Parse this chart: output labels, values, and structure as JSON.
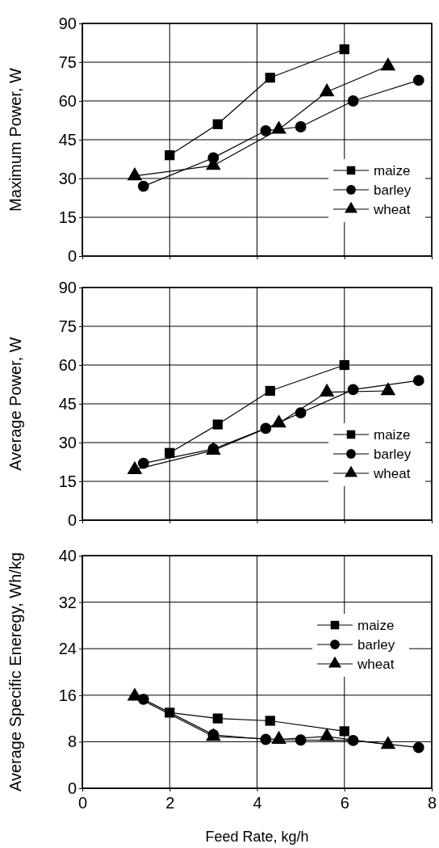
{
  "chart_data": [
    {
      "type": "line",
      "ylabel": "Maximum Power, W",
      "xlim": [
        0,
        8
      ],
      "xticks": [
        0,
        2,
        4,
        6,
        8
      ],
      "ylim": [
        0,
        90
      ],
      "yticks": [
        0,
        15,
        30,
        45,
        60,
        75,
        90
      ],
      "grid": true,
      "legend": "bottom right",
      "tick_labels": "y",
      "line_style": "solid",
      "series": [
        {
          "name": "maize",
          "color": "#000000",
          "marker": "square",
          "x": [
            2,
            3.1,
            4.3,
            6
          ],
          "values": [
            39,
            51,
            69,
            80
          ]
        },
        {
          "name": "barley",
          "color": "#000000",
          "marker": "circle",
          "x": [
            1.4,
            3,
            4.2,
            5,
            6.2,
            7.7
          ],
          "values": [
            27,
            38,
            48.5,
            50,
            60,
            68
          ]
        },
        {
          "name": "wheat",
          "color": "#000000",
          "marker": "triangle",
          "x": [
            1.2,
            3,
            4.5,
            5.6,
            7
          ],
          "values": [
            31,
            35,
            49,
            63.5,
            73.5
          ]
        }
      ]
    },
    {
      "type": "line",
      "ylabel": "Average Power, W",
      "xlim": [
        0,
        8
      ],
      "xticks": [
        0,
        2,
        4,
        6,
        8
      ],
      "ylim": [
        0,
        90
      ],
      "yticks": [
        0,
        15,
        30,
        45,
        60,
        75,
        90
      ],
      "grid": true,
      "legend": "bottom right",
      "tick_labels": "y",
      "line_style": "solid",
      "series": [
        {
          "name": "maize",
          "color": "#000000",
          "marker": "square",
          "x": [
            2,
            3.1,
            4.3,
            6
          ],
          "values": [
            26,
            37,
            50,
            60
          ]
        },
        {
          "name": "barley",
          "color": "#000000",
          "marker": "circle",
          "x": [
            1.4,
            3,
            4.2,
            5,
            6.2,
            7.7
          ],
          "values": [
            22,
            27.5,
            35.5,
            41.5,
            50.5,
            54
          ]
        },
        {
          "name": "wheat",
          "color": "#000000",
          "marker": "triangle",
          "x": [
            1.2,
            3,
            4.5,
            5.6,
            7
          ],
          "values": [
            19.5,
            27,
            37.5,
            49.5,
            50
          ]
        }
      ]
    },
    {
      "type": "line",
      "xlabel": "Feed Rate, kg/h",
      "ylabel": "Average Specific Eneregy, Wh/kg",
      "xlim": [
        0,
        8
      ],
      "xticks": [
        0,
        2,
        4,
        6,
        8
      ],
      "ylim": [
        0,
        40
      ],
      "yticks": [
        0,
        8,
        16,
        24,
        32,
        40
      ],
      "grid": true,
      "legend": "right",
      "line_style": "solid",
      "series": [
        {
          "name": "maize",
          "color": "#000000",
          "marker": "square",
          "x": [
            2,
            3.1,
            4.3,
            6
          ],
          "values": [
            13,
            12,
            11.6,
            9.8
          ]
        },
        {
          "name": "barley",
          "color": "#000000",
          "marker": "circle",
          "x": [
            1.4,
            3,
            4.2,
            5,
            6.2,
            7.7
          ],
          "values": [
            15.3,
            9.2,
            8.4,
            8.3,
            8.2,
            7
          ]
        },
        {
          "name": "wheat",
          "color": "#000000",
          "marker": "triangle",
          "x": [
            1.2,
            3,
            4.5,
            5.6,
            7
          ],
          "values": [
            15.8,
            8.9,
            8.4,
            8.9,
            7.5
          ]
        }
      ]
    }
  ]
}
